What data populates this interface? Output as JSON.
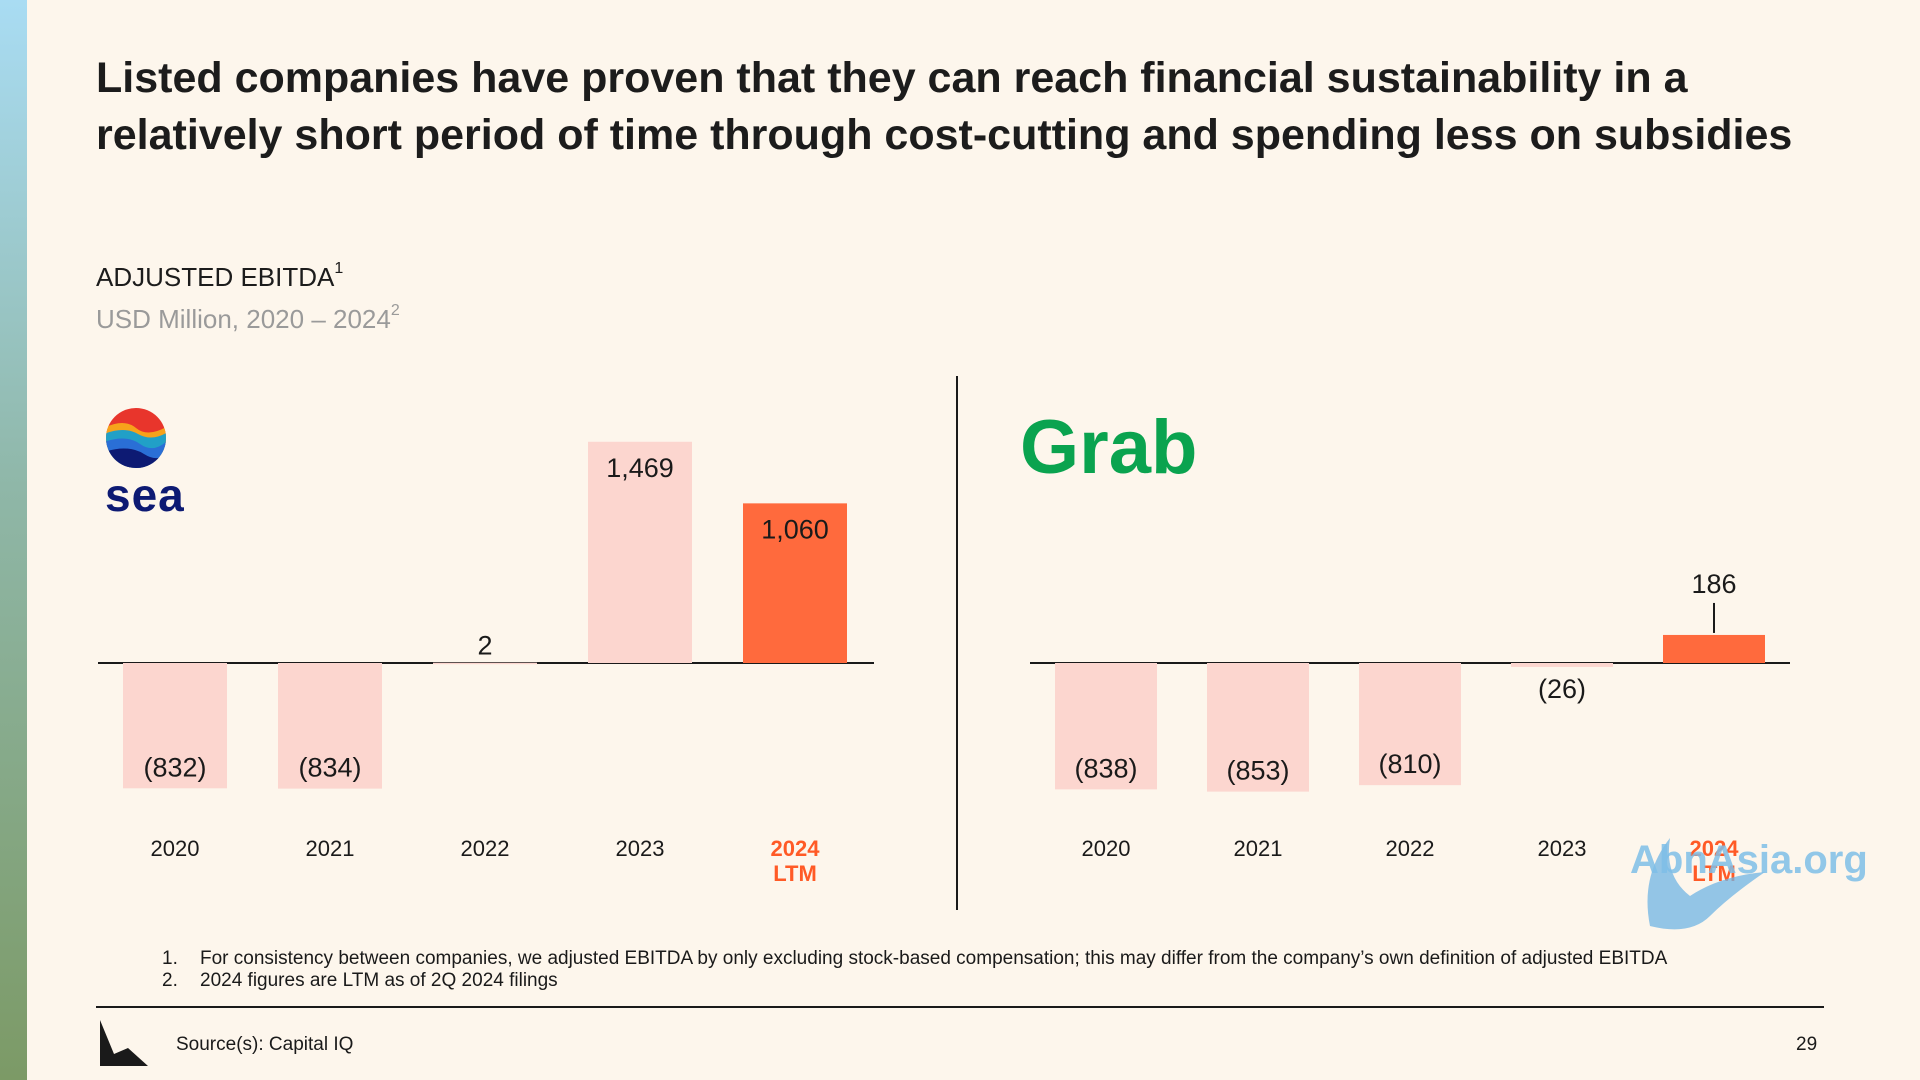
{
  "title": "Listed companies have proven that they can reach financial sustainability in a relatively short period of time through cost-cutting and spending less on subsidies",
  "subtitle": "ADJUSTED EBITDA",
  "subtitle_sup": "1",
  "units": "USD Million, 2020 – 2024",
  "units_sup": "2",
  "colors": {
    "past": "#fcd6cf",
    "latest": "#ff6a3d",
    "latest_label": "#ff5a26",
    "background": "#fdf6ec"
  },
  "chart_data": [
    {
      "type": "bar",
      "company": "sea",
      "categories": [
        "2020",
        "2021",
        "2022",
        "2023",
        "2024 LTM"
      ],
      "values": [
        -832,
        -834,
        2,
        1469,
        1060
      ],
      "labels": [
        "(832)",
        "(834)",
        "2",
        "1,469",
        "1,060"
      ],
      "highlight_index": 4
    },
    {
      "type": "bar",
      "company": "Grab",
      "categories": [
        "2020",
        "2021",
        "2022",
        "2023",
        "2024 LTM"
      ],
      "values": [
        -838,
        -853,
        -810,
        -26,
        186
      ],
      "labels": [
        "(838)",
        "(853)",
        "(810)",
        "(26)",
        "186"
      ],
      "highlight_index": 4
    }
  ],
  "footnotes": [
    {
      "num": "1.",
      "text": "For consistency between companies, we adjusted EBITDA by only excluding stock-based compensation; this may differ from the company’s own definition of adjusted EBITDA"
    },
    {
      "num": "2.",
      "text": "2024 figures are LTM as of 2Q 2024 filings"
    }
  ],
  "source": "Source(s): Capital IQ",
  "page_number": "29",
  "watermark": "AbnAsia.org",
  "logo_icons": {
    "left": "sea-logo-icon",
    "right": "grab-logo-icon",
    "footer": "brand-corner-icon"
  }
}
